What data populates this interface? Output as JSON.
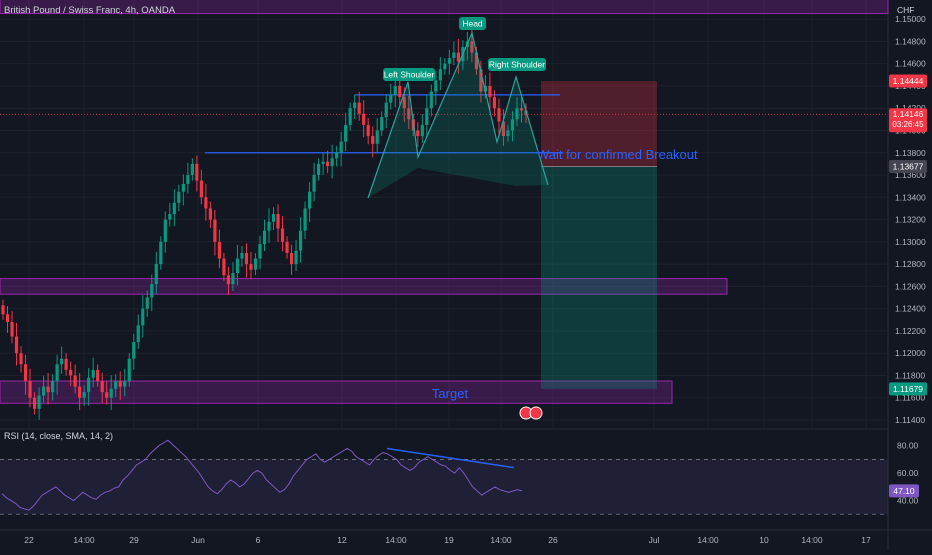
{
  "header": {
    "symbol_title": "British Pound / Swiss Franc, 4h, OANDA",
    "currency": "CHF"
  },
  "price_axis": {
    "ticks": [
      "1.15000",
      "1.14800",
      "1.14600",
      "1.14400",
      "1.14200",
      "1.14000",
      "1.13800",
      "1.13600",
      "1.13400",
      "1.13200",
      "1.13000",
      "1.12800",
      "1.12600",
      "1.12400",
      "1.12200",
      "1.12000",
      "1.11800",
      "1.11600",
      "1.11400"
    ],
    "badges": {
      "stop": {
        "value": "1.14444",
        "color": "#f23645"
      },
      "last": {
        "value": "1.14146",
        "countdown": "03:26:45",
        "color": "#f23645"
      },
      "entry": {
        "value": "1.13677",
        "color": "#434651"
      },
      "target": {
        "value": "1.11679",
        "color": "#089981"
      }
    }
  },
  "annotations": {
    "head": "Head",
    "left_shoulder": "Left Shoulder",
    "right_shoulder": "Right Shoulder",
    "breakout_note": "Wait for confirmed Breakout",
    "target": "Target"
  },
  "rsi": {
    "label": "RSI (14, close, SMA, 14, 2)",
    "ticks": [
      "80.00",
      "60.00",
      "40.00"
    ],
    "value": "47.10",
    "upper_band": 70,
    "lower_band": 30
  },
  "time_axis": {
    "labels": [
      "22",
      "14:00",
      "29",
      "Jun",
      "6",
      "12",
      "14:00",
      "19",
      "14:00",
      "26",
      "Jul",
      "14:00",
      "10",
      "14:00",
      "17"
    ]
  },
  "colors": {
    "up": "#089981",
    "down": "#f23645",
    "zone": "#9c27b0",
    "trend": "#2962ff",
    "rsi_line": "#7e57c2"
  },
  "chart_data": {
    "type": "candlestick",
    "symbol": "GBPCHF",
    "timeframe": "4h",
    "ylim": [
      1.114,
      1.151
    ],
    "price_series_close": [
      1.1235,
      1.1228,
      1.1215,
      1.12,
      1.119,
      1.1175,
      1.116,
      1.115,
      1.1162,
      1.117,
      1.1165,
      1.1175,
      1.119,
      1.1195,
      1.1185,
      1.118,
      1.117,
      1.116,
      1.1165,
      1.1178,
      1.1185,
      1.1175,
      1.1165,
      1.116,
      1.1168,
      1.1175,
      1.117,
      1.1175,
      1.1195,
      1.121,
      1.1225,
      1.124,
      1.125,
      1.1262,
      1.128,
      1.13,
      1.132,
      1.1325,
      1.1335,
      1.1345,
      1.1352,
      1.136,
      1.137,
      1.1355,
      1.134,
      1.133,
      1.132,
      1.13,
      1.1285,
      1.127,
      1.1262,
      1.1272,
      1.1285,
      1.129,
      1.128,
      1.1275,
      1.1285,
      1.1298,
      1.131,
      1.1318,
      1.1325,
      1.1312,
      1.13,
      1.129,
      1.128,
      1.1292,
      1.131,
      1.133,
      1.1345,
      1.136,
      1.137,
      1.1372,
      1.1368,
      1.1375,
      1.138,
      1.139,
      1.1405,
      1.142,
      1.1425,
      1.1415,
      1.1405,
      1.1395,
      1.1388,
      1.14,
      1.1412,
      1.1425,
      1.1432,
      1.144,
      1.143,
      1.142,
      1.141,
      1.14,
      1.1395,
      1.1405,
      1.142,
      1.1435,
      1.1445,
      1.1455,
      1.146,
      1.1465,
      1.147,
      1.1462,
      1.1475,
      1.148,
      1.147,
      1.1455,
      1.1435,
      1.144,
      1.143,
      1.142,
      1.1408,
      1.1395,
      1.14,
      1.141,
      1.142,
      1.1418,
      1.1414
    ],
    "levels": {
      "neckline": 1.138,
      "resistance": 1.1432,
      "stop": 1.14444,
      "entry": 1.13677,
      "target": 1.11679,
      "last": 1.14146,
      "top_line": 1.1518
    },
    "zones": [
      {
        "from": 1.1505,
        "to": 1.152
      },
      {
        "from": 1.1253,
        "to": 1.1267
      },
      {
        "from": 1.1155,
        "to": 1.1175
      }
    ],
    "rsi_series": [
      45,
      42,
      40,
      38,
      35,
      34,
      33,
      36,
      40,
      44,
      46,
      48,
      50,
      47,
      44,
      42,
      40,
      43,
      46,
      44,
      42,
      41,
      44,
      46,
      47,
      49,
      50,
      55,
      58,
      62,
      66,
      68,
      70,
      74,
      77,
      80,
      82,
      84,
      81,
      78,
      75,
      72,
      68,
      64,
      60,
      55,
      50,
      47,
      45,
      48,
      52,
      55,
      53,
      50,
      52,
      56,
      60,
      62,
      60,
      55,
      52,
      49,
      46,
      48,
      52,
      58,
      62,
      66,
      70,
      72,
      74,
      70,
      68,
      70,
      72,
      74,
      76,
      78,
      76,
      72,
      70,
      68,
      66,
      70,
      73,
      75,
      74,
      72,
      70,
      66,
      64,
      62,
      64,
      68,
      70,
      72,
      70,
      68,
      66,
      65,
      62,
      60,
      64,
      60,
      55,
      50,
      47,
      44,
      46,
      48,
      50,
      48,
      47,
      46,
      47,
      48,
      47.1
    ],
    "rsi_ylim": [
      20,
      90
    ],
    "rsi_trendline": {
      "from": 78,
      "to": 64
    }
  }
}
